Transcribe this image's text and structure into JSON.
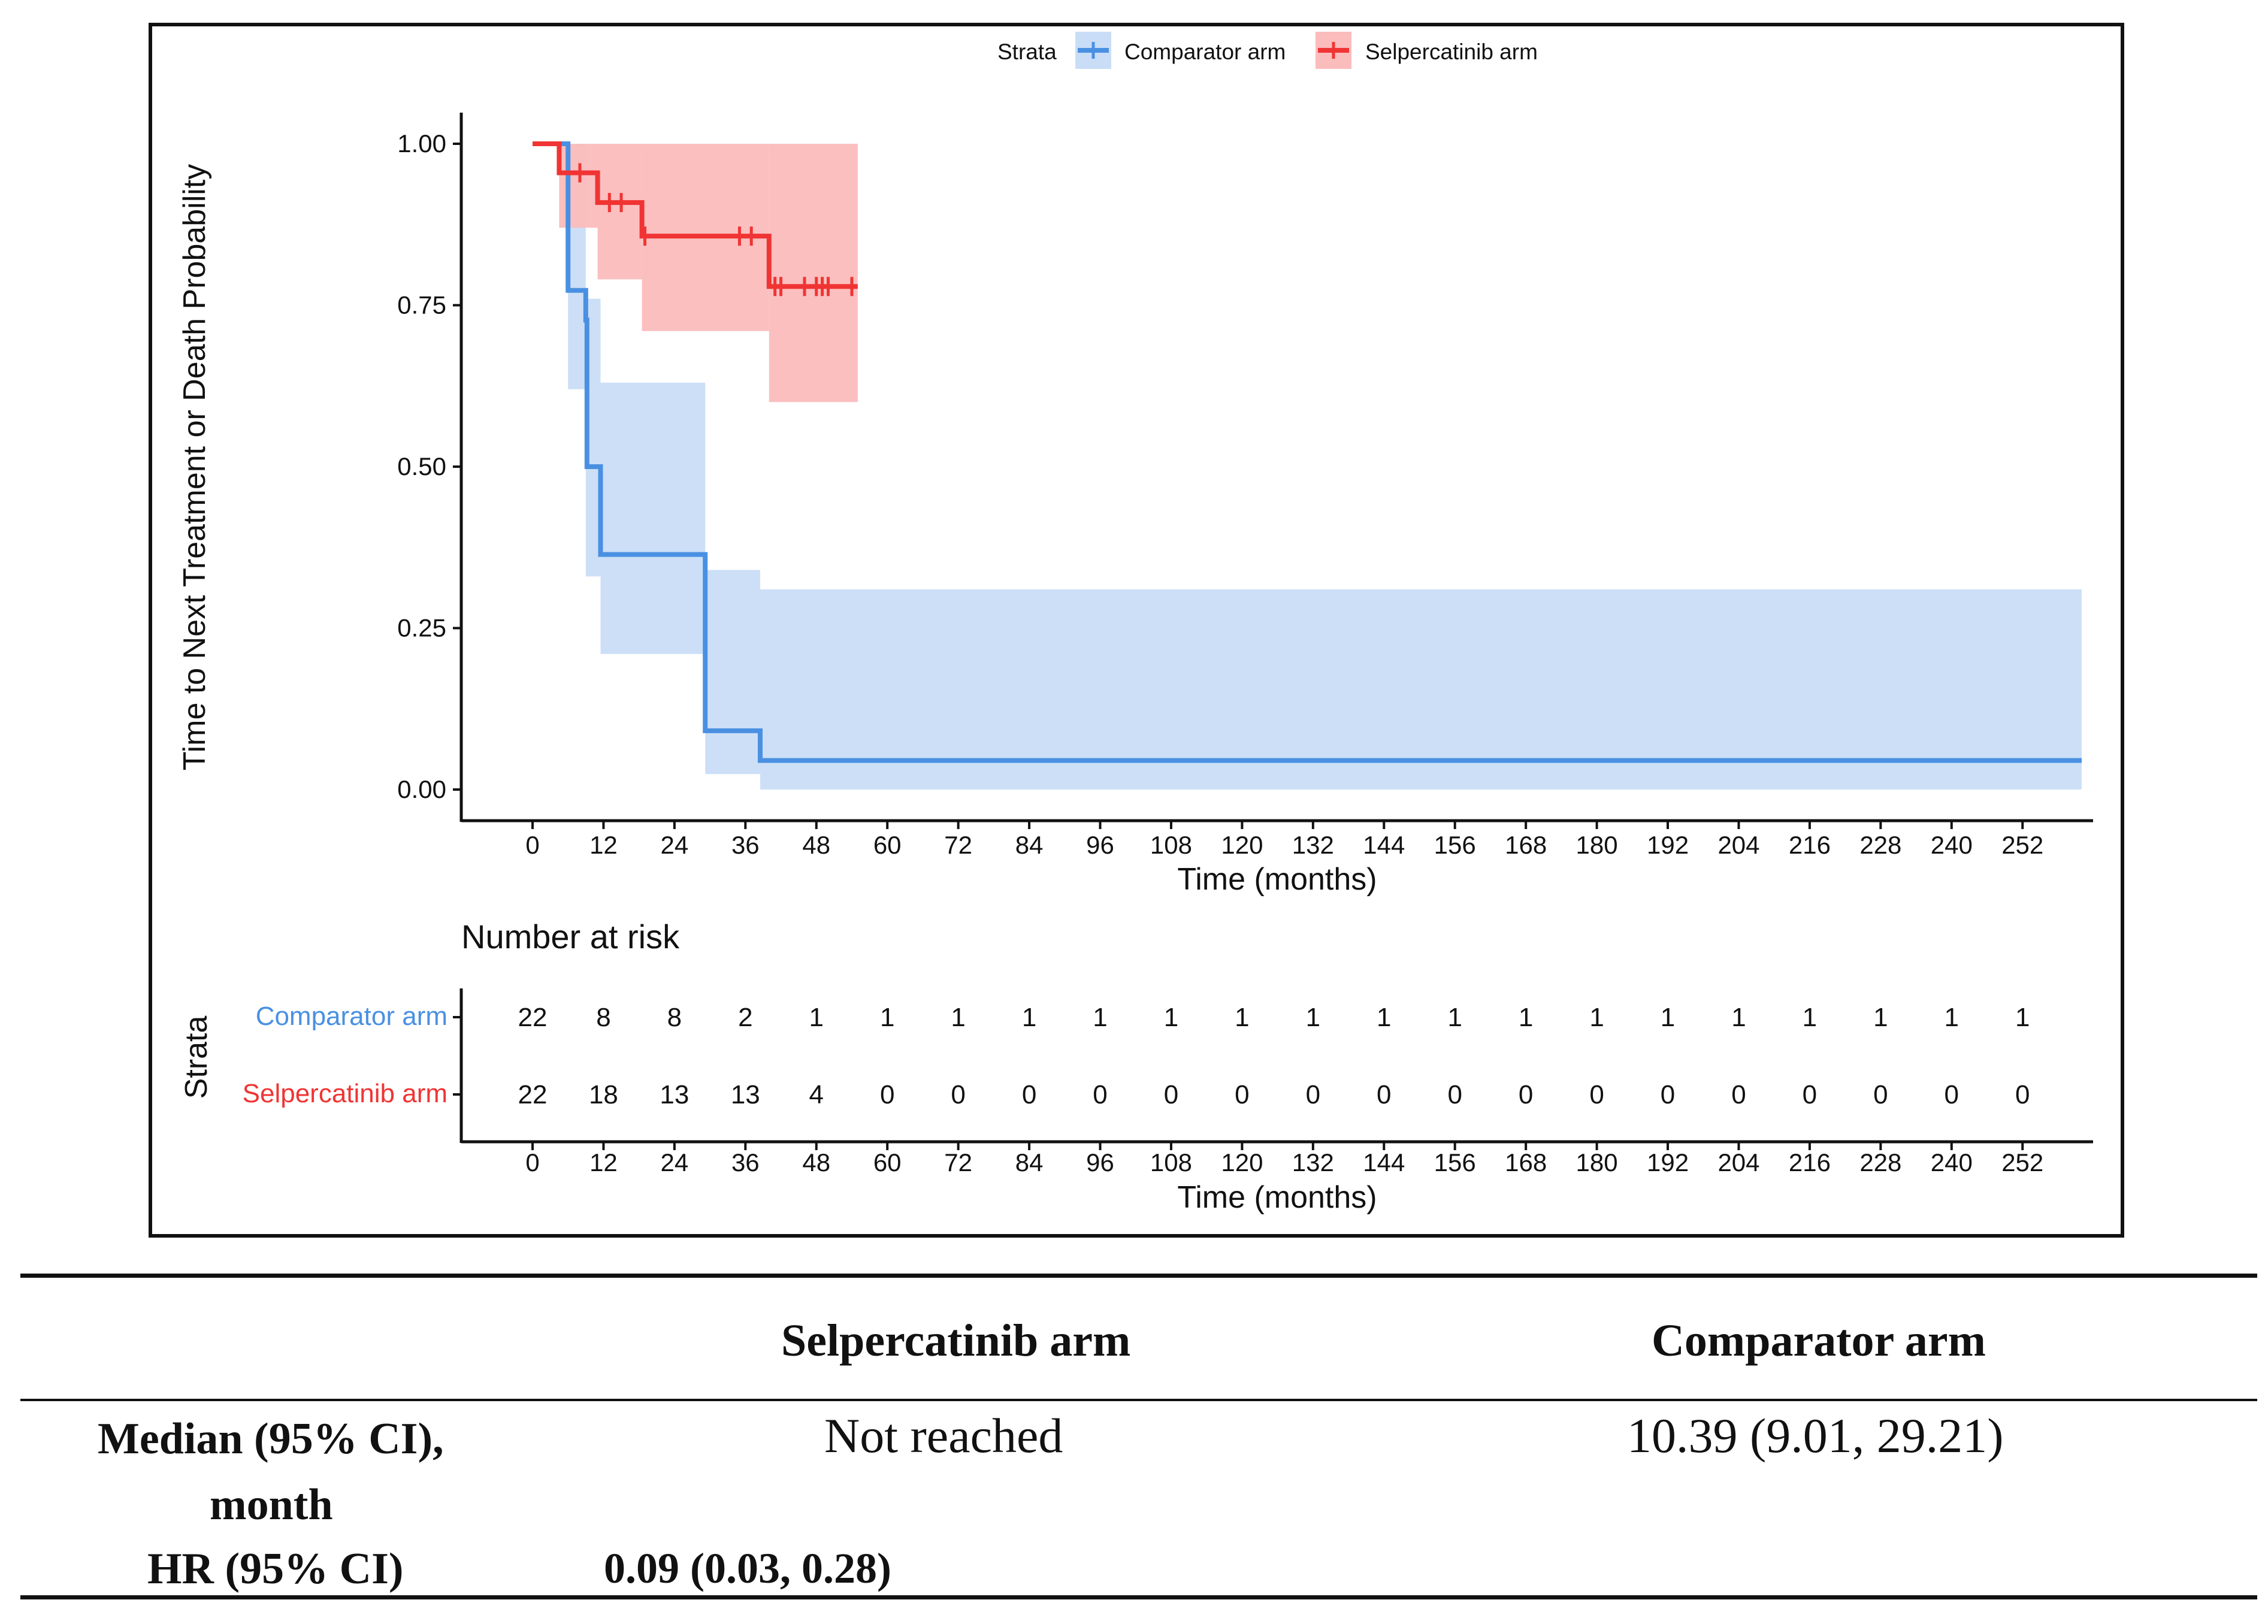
{
  "chart_data": {
    "type": "line",
    "subtype": "kaplan-meier",
    "title": "",
    "xlabel": "Time (months)",
    "ylabel": "Time to Next Treatment or Death Probability",
    "xlim": [
      -20,
      262
    ],
    "ylim": [
      -0.05,
      1.05
    ],
    "x_ticks": [
      0,
      12,
      24,
      36,
      48,
      60,
      72,
      84,
      96,
      108,
      120,
      132,
      144,
      156,
      168,
      180,
      192,
      204,
      216,
      228,
      240,
      252
    ],
    "y_ticks": [
      "0.00",
      "0.25",
      "0.50",
      "0.75",
      "1.00"
    ],
    "y_tick_values": [
      0,
      0.25,
      0.5,
      0.75,
      1.0
    ],
    "legend": {
      "title": "Strata",
      "position": "top",
      "entries": [
        "Comparator arm",
        "Selpercatinib arm"
      ]
    },
    "series": [
      {
        "name": "Comparator arm",
        "color": "#4a90e2",
        "ci_color": "#c9ddf7",
        "steps": [
          [
            0,
            1.0
          ],
          [
            6,
            1.0
          ],
          [
            6,
            0.773
          ],
          [
            9,
            0.773
          ],
          [
            9,
            0.727
          ],
          [
            9.2,
            0.727
          ],
          [
            9.2,
            0.5
          ],
          [
            11.5,
            0.5
          ],
          [
            11.5,
            0.364
          ],
          [
            29.2,
            0.364
          ],
          [
            29.2,
            0.091
          ],
          [
            38.5,
            0.091
          ],
          [
            38.5,
            0.045
          ],
          [
            262,
            0.045
          ]
        ],
        "ci_bands": [
          [
            6,
            9,
            0.62,
            1.0
          ],
          [
            9,
            11.5,
            0.33,
            0.76
          ],
          [
            11.5,
            29.2,
            0.21,
            0.63
          ],
          [
            29.2,
            38.5,
            0.024,
            0.34
          ],
          [
            38.5,
            262,
            0.0,
            0.31
          ]
        ],
        "censors": []
      },
      {
        "name": "Selpercatinib arm",
        "color": "#f03434",
        "ci_color": "#fbbcbc",
        "steps": [
          [
            0,
            1.0
          ],
          [
            4.5,
            1.0
          ],
          [
            4.5,
            0.955
          ],
          [
            11,
            0.955
          ],
          [
            11,
            0.909
          ],
          [
            18.5,
            0.909
          ],
          [
            18.5,
            0.857
          ],
          [
            40,
            0.857
          ],
          [
            40,
            0.779
          ],
          [
            55,
            0.779
          ]
        ],
        "ci_bands": [
          [
            4.5,
            11,
            0.87,
            1.0
          ],
          [
            11,
            18.5,
            0.79,
            1.0
          ],
          [
            18.5,
            40,
            0.71,
            1.0
          ],
          [
            40,
            55,
            0.6,
            1.0
          ]
        ],
        "censors": [
          [
            8,
            0.955
          ],
          [
            13,
            0.909
          ],
          [
            15,
            0.909
          ],
          [
            19,
            0.857
          ],
          [
            35,
            0.857
          ],
          [
            37,
            0.857
          ],
          [
            41,
            0.779
          ],
          [
            42,
            0.779
          ],
          [
            46,
            0.779
          ],
          [
            48,
            0.779
          ],
          [
            49,
            0.779
          ],
          [
            50,
            0.779
          ],
          [
            54,
            0.779
          ]
        ]
      }
    ],
    "risk_table": {
      "title": "Number at risk",
      "ylabel": "Strata",
      "xlabel": "Time (months)",
      "rows": [
        {
          "name": "Comparator arm",
          "color": "#4a90e2",
          "values": [
            "22",
            "8",
            "8",
            "2",
            "1",
            "1",
            "1",
            "1",
            "1",
            "1",
            "1",
            "1",
            "1",
            "1",
            "1",
            "1",
            "1",
            "1",
            "1",
            "1",
            "1",
            "1"
          ]
        },
        {
          "name": "Selpercatinib arm",
          "color": "#f03434",
          "values": [
            "22",
            "18",
            "13",
            "13",
            "4",
            "0",
            "0",
            "0",
            "0",
            "0",
            "0",
            "0",
            "0",
            "0",
            "0",
            "0",
            "0",
            "0",
            "0",
            "0",
            "0",
            "0"
          ]
        }
      ]
    }
  },
  "summary_table": {
    "col_selpercatinib": "Selpercatinib arm",
    "col_comparator": "Comparator arm",
    "row_median_label_line1": "Median (95% CI),",
    "row_median_label_line2": "month",
    "median_selpercatinib": "Not reached",
    "median_comparator": "10.39 (9.01, 29.21)",
    "row_hr_label": "HR (95% CI)",
    "hr_value": "0.09 (0.03, 0.28)"
  }
}
